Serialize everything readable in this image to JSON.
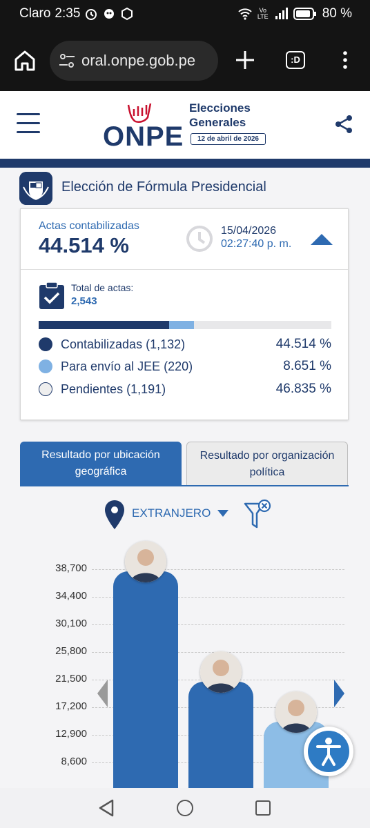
{
  "statusbar": {
    "carrier": "Claro",
    "time": "2:35",
    "network_label_top": "Vo",
    "network_label_bottom": "LTE",
    "battery": "80 %"
  },
  "browser": {
    "url": "oral.onpe.gob.pe",
    "tabs_label": ":D"
  },
  "header": {
    "logo": "ONPE",
    "event_title_line1": "Elecciones",
    "event_title_line2": "Generales",
    "event_date": "12 de abril de 2026"
  },
  "section": {
    "title": "Elección de Fórmula Presidencial"
  },
  "summary": {
    "actas_label": "Actas contabilizadas",
    "actas_value": "44.514 %",
    "date": "15/04/2026",
    "time": "02:27:40 p. m.",
    "total_label": "Total de actas:",
    "total_value": "2,543",
    "progress": {
      "contabilizadas": 44.514,
      "jee": 8.651,
      "pendientes": 46.835
    },
    "legend": [
      {
        "label": "Contabilizadas (1,132)",
        "pct": "44.514 %",
        "color": "#1f3a6b"
      },
      {
        "label": "Para envío al JEE (220)",
        "pct": "8.651 %",
        "color": "#7fb1e3"
      },
      {
        "label": "Pendientes (1,191)",
        "pct": "46.835 %",
        "color": "#eeeeee"
      }
    ]
  },
  "tabs": {
    "geo": "Resultado por ubicación geográfica",
    "org": "Resultado por organización política"
  },
  "filter": {
    "location": "EXTRANJERO"
  },
  "chart_data": {
    "type": "bar",
    "y_ticks": [
      38700,
      34400,
      30100,
      25800,
      21500,
      17200,
      12900,
      8600
    ],
    "y_tick_labels": [
      "38,700",
      "34,400",
      "30,100",
      "25,800",
      "21,500",
      "17,200",
      "12,900",
      "8,600"
    ],
    "ylim": [
      4300,
      38700
    ],
    "values": [
      38400,
      21200,
      14900
    ],
    "colors": [
      "#2e6ab1",
      "#2e6ab1",
      "#8dbde6"
    ]
  }
}
